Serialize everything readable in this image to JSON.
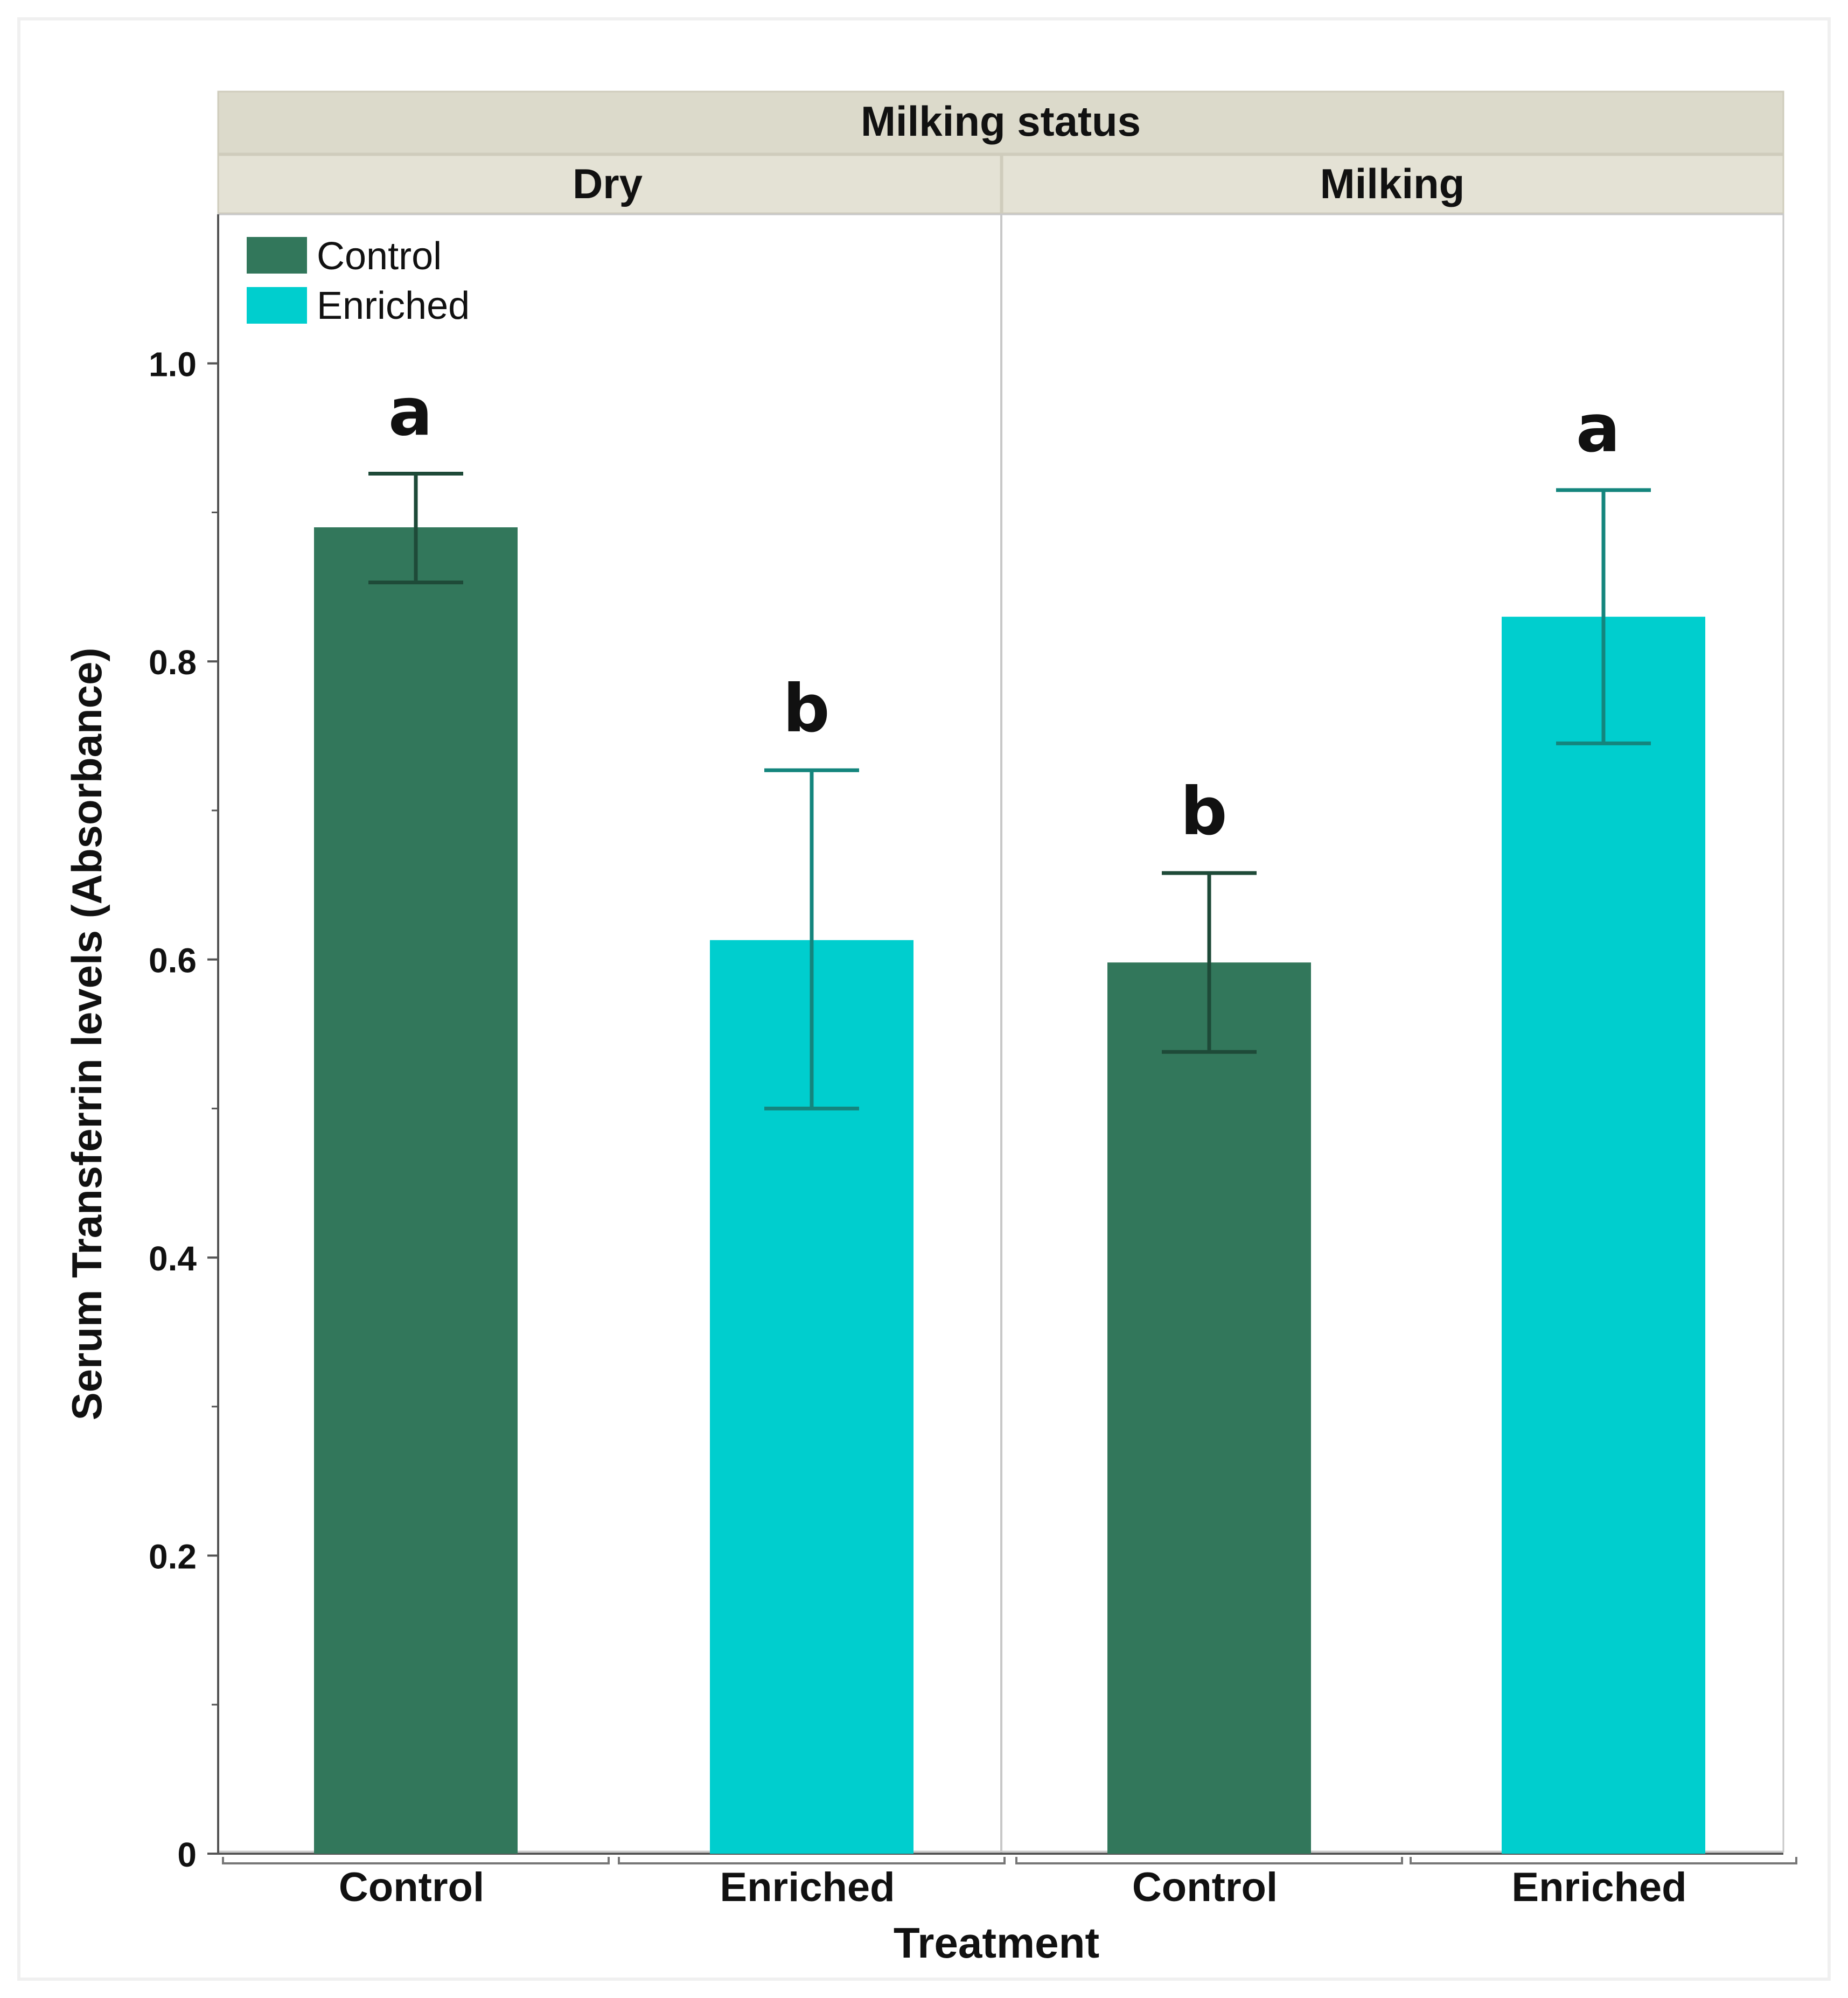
{
  "chart_data": {
    "type": "bar",
    "facet_title": "Milking status",
    "panels": [
      {
        "name": "Dry",
        "bars": [
          {
            "category": "Control",
            "series": "Control",
            "value": 0.89,
            "err_low": 0.853,
            "err_high": 0.926,
            "letter": "a"
          },
          {
            "category": "Enriched",
            "series": "Enriched",
            "value": 0.613,
            "err_low": 0.5,
            "err_high": 0.727,
            "letter": "b"
          }
        ]
      },
      {
        "name": "Milking",
        "bars": [
          {
            "category": "Control",
            "series": "Control",
            "value": 0.598,
            "err_low": 0.538,
            "err_high": 0.658,
            "letter": "b"
          },
          {
            "category": "Enriched",
            "series": "Enriched",
            "value": 0.83,
            "err_low": 0.745,
            "err_high": 0.915,
            "letter": "a"
          }
        ]
      }
    ],
    "legend": {
      "placement": "top-left",
      "entries": [
        {
          "name": "Control",
          "color": "#32775b"
        },
        {
          "name": "Enriched",
          "color": "#00cece"
        }
      ]
    },
    "xlabel": "Treatment",
    "ylabel": "Serum Transferrin levels (Absorbance)",
    "ylim": [
      0,
      1.1
    ],
    "yticks": [
      "0",
      "0.2",
      "0.4",
      "0.6",
      "0.8",
      "1.0"
    ],
    "grid": false,
    "colors": {
      "control_bar": "#32775b",
      "enriched_bar": "#00cece",
      "control_err": "#1e4a38",
      "enriched_err": "#14857d",
      "header_fill": "#dcdacb"
    }
  }
}
